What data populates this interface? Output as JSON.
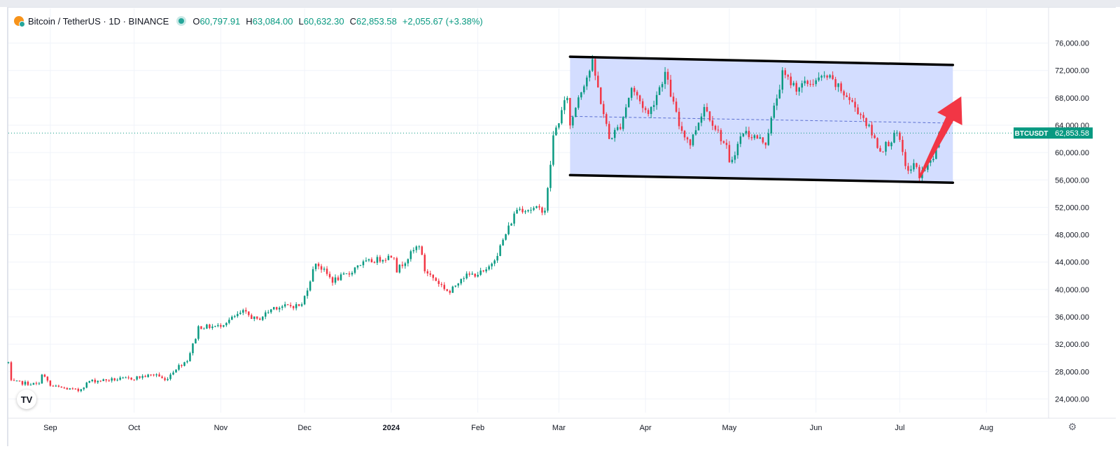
{
  "legend": {
    "title": "Bitcoin / TetherUS · 1D · BINANCE",
    "open_key": "O",
    "open": "60,797.91",
    "high_key": "H",
    "high": "63,084.00",
    "low_key": "L",
    "low": "60,632.30",
    "close_key": "C",
    "close": "62,853.58",
    "change": "+2,055.67 (+3.38%)"
  },
  "price_tag": {
    "symbol": "BTCUSDT",
    "price": "62,853.58"
  },
  "logo_text": "TV",
  "chart_data": {
    "type": "candlestick",
    "symbol": "BTCUSDT",
    "y_axis": {
      "range": [
        22000,
        78000
      ],
      "ticks": [
        24000,
        28000,
        32000,
        36000,
        40000,
        44000,
        48000,
        52000,
        56000,
        60000,
        64000,
        68000,
        72000,
        76000
      ],
      "tick_labels": [
        "24,000.00",
        "28,000.00",
        "32,000.00",
        "36,000.00",
        "40,000.00",
        "44,000.00",
        "48,000.00",
        "52,000.00",
        "56,000.00",
        "60,000.00",
        "64,000.00",
        "68,000.00",
        "72,000.00",
        "76,000.00"
      ]
    },
    "x_axis": {
      "range": [
        "2023-08-17",
        "2024-08-23"
      ],
      "ticks": [
        "2023-09-01",
        "2023-10-01",
        "2023-11-01",
        "2023-12-01",
        "2024-01-01",
        "2024-02-01",
        "2024-03-01",
        "2024-04-01",
        "2024-05-01",
        "2024-06-01",
        "2024-07-01",
        "2024-08-01"
      ],
      "tick_labels": [
        "Sep",
        "Oct",
        "Nov",
        "Dec",
        "2024",
        "Feb",
        "Mar",
        "Apr",
        "May",
        "Jun",
        "Jul",
        "Aug"
      ]
    },
    "last_close": 62853.58,
    "colors": {
      "up": "#089981",
      "down": "#f23645",
      "channel_fill": "#d1dbff",
      "channel_line": "#000000",
      "arrow": "#f23645",
      "midline": "#5b6fd1"
    },
    "channel": {
      "upper": [
        [
          "2024-03-05",
          74000
        ],
        [
          "2024-07-20",
          72800
        ]
      ],
      "lower": [
        [
          "2024-03-05",
          56700
        ],
        [
          "2024-07-20",
          55600
        ]
      ],
      "mid": [
        [
          "2024-03-05",
          65300
        ],
        [
          "2024-07-20",
          64300
        ]
      ]
    },
    "arrow": {
      "from": [
        "2024-07-08",
        56300
      ],
      "to": [
        "2024-07-23",
        68200
      ]
    },
    "anchors": [
      [
        "2023-08-17",
        29300
      ],
      [
        "2023-08-18",
        26500
      ],
      [
        "2023-08-28",
        26100
      ],
      [
        "2023-08-29",
        27800
      ],
      [
        "2023-09-01",
        25900
      ],
      [
        "2023-09-11",
        25200
      ],
      [
        "2023-09-15",
        26600
      ],
      [
        "2023-09-30",
        27000
      ],
      [
        "2023-10-09",
        27600
      ],
      [
        "2023-10-12",
        26700
      ],
      [
        "2023-10-16",
        28500
      ],
      [
        "2023-10-20",
        29700
      ],
      [
        "2023-10-23",
        33000
      ],
      [
        "2023-10-24",
        34500
      ],
      [
        "2023-10-31",
        34600
      ],
      [
        "2023-11-09",
        36700
      ],
      [
        "2023-11-14",
        35500
      ],
      [
        "2023-11-20",
        37400
      ],
      [
        "2023-11-30",
        37700
      ],
      [
        "2023-12-05",
        44000
      ],
      [
        "2023-12-11",
        41300
      ],
      [
        "2023-12-17",
        42300
      ],
      [
        "2023-12-20",
        43600
      ],
      [
        "2024-01-02",
        45000
      ],
      [
        "2024-01-03",
        42800
      ],
      [
        "2024-01-11",
        46600
      ],
      [
        "2024-01-13",
        42800
      ],
      [
        "2024-01-22",
        39500
      ],
      [
        "2024-01-26",
        41800
      ],
      [
        "2024-02-04",
        42600
      ],
      [
        "2024-02-08",
        45300
      ],
      [
        "2024-02-15",
        51800
      ],
      [
        "2024-02-25",
        51700
      ],
      [
        "2024-02-26",
        54500
      ],
      [
        "2024-02-28",
        62300
      ],
      [
        "2024-03-04",
        68300
      ],
      [
        "2024-03-05",
        63800
      ],
      [
        "2024-03-08",
        68300
      ],
      [
        "2024-03-13",
        73000
      ],
      [
        "2024-03-19",
        62000
      ],
      [
        "2024-03-23",
        64000
      ],
      [
        "2024-03-27",
        69500
      ],
      [
        "2024-04-02",
        65500
      ],
      [
        "2024-04-08",
        71600
      ],
      [
        "2024-04-13",
        64000
      ],
      [
        "2024-04-17",
        61300
      ],
      [
        "2024-04-22",
        66800
      ],
      [
        "2024-04-30",
        60600
      ],
      [
        "2024-05-01",
        58200
      ],
      [
        "2024-05-06",
        63100
      ],
      [
        "2024-05-14",
        61500
      ],
      [
        "2024-05-20",
        71400
      ],
      [
        "2024-05-25",
        69500
      ],
      [
        "2024-06-05",
        71100
      ],
      [
        "2024-06-12",
        68200
      ],
      [
        "2024-06-18",
        65100
      ],
      [
        "2024-06-24",
        60300
      ],
      [
        "2024-06-30",
        62700
      ],
      [
        "2024-07-04",
        57000
      ],
      [
        "2024-07-06",
        58300
      ],
      [
        "2024-07-08",
        56700
      ],
      [
        "2024-07-13",
        59200
      ],
      [
        "2024-07-15",
        62853.58
      ]
    ]
  }
}
